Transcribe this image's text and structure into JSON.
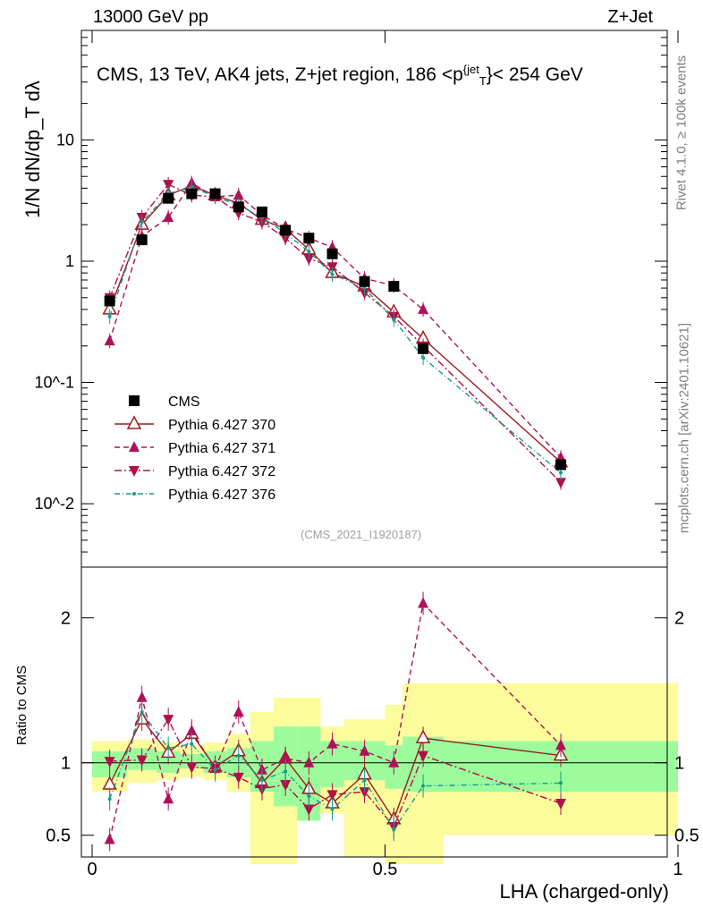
{
  "header": {
    "left": "13000 GeV pp",
    "right": "Z+Jet"
  },
  "title": "CMS, 13 TeV, AK4 jets, Z+jet region, 186 <p",
  "title_sup": "{jet",
  "title_sub": "T",
  "title_tail": "}< 254 GeV",
  "side_text": {
    "rivet": "Rivet 4.1.0, ≥ 100k events",
    "mcplots": "mcplots.cern.ch [arXiv:2401.10621]"
  },
  "analysis_tag": "(CMS_2021_I1920187)",
  "y_label_top": "1/N dN/dp_T dλ",
  "y_label_bottom": "Ratio to CMS",
  "x_label": "LHA (charged-only)",
  "colors": {
    "data": "#000000",
    "p370": "#9b1c22",
    "p371": "#b0105a",
    "p372": "#b0104a",
    "p376": "#1a9a8a",
    "band_inner": "#9cfc9c",
    "band_outer": "#fcfc9c"
  },
  "chart_data": [
    {
      "type": "line",
      "title": "CMS, 13 TeV, AK4 jets, Z+jet region, 186 < pT jet < 254 GeV",
      "xlabel": "LHA (charged-only)",
      "ylabel": "1/N dN/dpT dλ",
      "yscale": "log",
      "ylim": [
        0.003,
        80
      ],
      "xlim": [
        0,
        1
      ],
      "x": [
        0.03,
        0.085,
        0.13,
        0.17,
        0.21,
        0.25,
        0.29,
        0.33,
        0.37,
        0.41,
        0.465,
        0.515,
        0.565,
        0.8
      ],
      "legend": [
        "CMS",
        "Pythia 6.427 370",
        "Pythia 6.427 371",
        "Pythia 6.427 372",
        "Pythia 6.427 376"
      ],
      "series": [
        {
          "name": "CMS",
          "values": [
            0.47,
            1.5,
            3.3,
            3.6,
            3.6,
            2.8,
            2.55,
            1.8,
            1.55,
            1.15,
            0.68,
            0.62,
            0.19,
            0.021
          ]
        },
        {
          "name": "Pythia 6.427 370",
          "values": [
            0.4,
            2.0,
            3.5,
            4.2,
            3.5,
            3.0,
            2.2,
            1.85,
            1.25,
            0.8,
            0.62,
            0.38,
            0.23,
            0.022
          ]
        },
        {
          "name": "Pythia 6.427 371",
          "values": [
            0.22,
            1.6,
            2.3,
            4.4,
            3.4,
            3.5,
            2.4,
            1.85,
            1.55,
            1.3,
            0.72,
            0.63,
            0.4,
            0.024
          ]
        },
        {
          "name": "Pythia 6.427 372",
          "values": [
            0.5,
            2.3,
            4.3,
            3.5,
            3.4,
            2.5,
            2.1,
            1.55,
            1.05,
            0.9,
            0.55,
            0.35,
            0.2,
            0.015
          ]
        },
        {
          "name": "Pythia 6.427 376",
          "values": [
            0.35,
            2.1,
            3.6,
            4.1,
            3.4,
            2.9,
            2.3,
            1.7,
            1.2,
            0.78,
            0.6,
            0.33,
            0.16,
            0.018
          ]
        }
      ],
      "yticks": [
        "10^-2",
        "10^-1",
        "1",
        "10"
      ]
    },
    {
      "type": "line",
      "ylabel": "Ratio to CMS",
      "xlabel": "LHA (charged-only)",
      "ylim": [
        0.35,
        2.35
      ],
      "xlim": [
        0,
        1
      ],
      "x": [
        0.03,
        0.085,
        0.13,
        0.17,
        0.21,
        0.25,
        0.29,
        0.33,
        0.37,
        0.41,
        0.465,
        0.515,
        0.565,
        0.8
      ],
      "xticks": [
        "0",
        "0.5",
        "1"
      ],
      "yticks": [
        "0.5",
        "1",
        "2"
      ],
      "band_edges": [
        0,
        0.06,
        0.11,
        0.15,
        0.19,
        0.23,
        0.27,
        0.31,
        0.35,
        0.39,
        0.43,
        0.5,
        0.53,
        0.6,
        1.0
      ],
      "band_inner": [
        [
          0.9,
          1.08
        ],
        [
          0.95,
          1.1
        ],
        [
          0.93,
          1.08
        ],
        [
          0.96,
          1.06
        ],
        [
          0.93,
          1.08
        ],
        [
          0.9,
          1.1
        ],
        [
          0.8,
          1.15
        ],
        [
          0.7,
          1.25
        ],
        [
          0.6,
          1.25
        ],
        [
          0.83,
          1.15
        ],
        [
          0.88,
          1.15
        ],
        [
          0.82,
          1.12
        ],
        [
          0.8,
          1.18
        ],
        [
          0.8,
          1.15
        ]
      ],
      "band_outer": [
        [
          0.8,
          1.15
        ],
        [
          0.86,
          1.16
        ],
        [
          0.88,
          1.14
        ],
        [
          0.9,
          1.12
        ],
        [
          0.88,
          1.14
        ],
        [
          0.8,
          1.2
        ],
        [
          0.3,
          1.35
        ],
        [
          0.3,
          1.45
        ],
        [
          0.6,
          1.45
        ],
        [
          0.65,
          1.25
        ],
        [
          0.35,
          1.3
        ],
        [
          0.3,
          1.4
        ],
        [
          0.3,
          1.55
        ],
        [
          0.5,
          1.55
        ]
      ],
      "series": [
        {
          "name": "Pythia 6.427 370",
          "values": [
            0.85,
            1.3,
            1.07,
            1.2,
            0.97,
            1.08,
            0.86,
            1.03,
            0.82,
            0.72,
            0.92,
            0.61,
            1.17,
            1.05
          ]
        },
        {
          "name": "Pythia 6.427 371",
          "values": [
            0.47,
            1.45,
            0.75,
            1.22,
            0.96,
            1.35,
            0.95,
            1.03,
            1.0,
            1.13,
            1.08,
            1.0,
            2.1,
            1.12
          ]
        },
        {
          "name": "Pythia 6.427 372",
          "values": [
            1.01,
            1.02,
            1.3,
            0.97,
            0.96,
            0.9,
            0.82,
            0.85,
            0.68,
            0.78,
            0.8,
            0.56,
            1.05,
            0.72
          ]
        },
        {
          "name": "Pythia 6.427 376",
          "values": [
            0.75,
            1.35,
            1.1,
            1.13,
            0.95,
            1.05,
            0.88,
            0.94,
            0.77,
            0.68,
            0.88,
            0.54,
            0.84,
            0.86
          ]
        }
      ]
    }
  ]
}
